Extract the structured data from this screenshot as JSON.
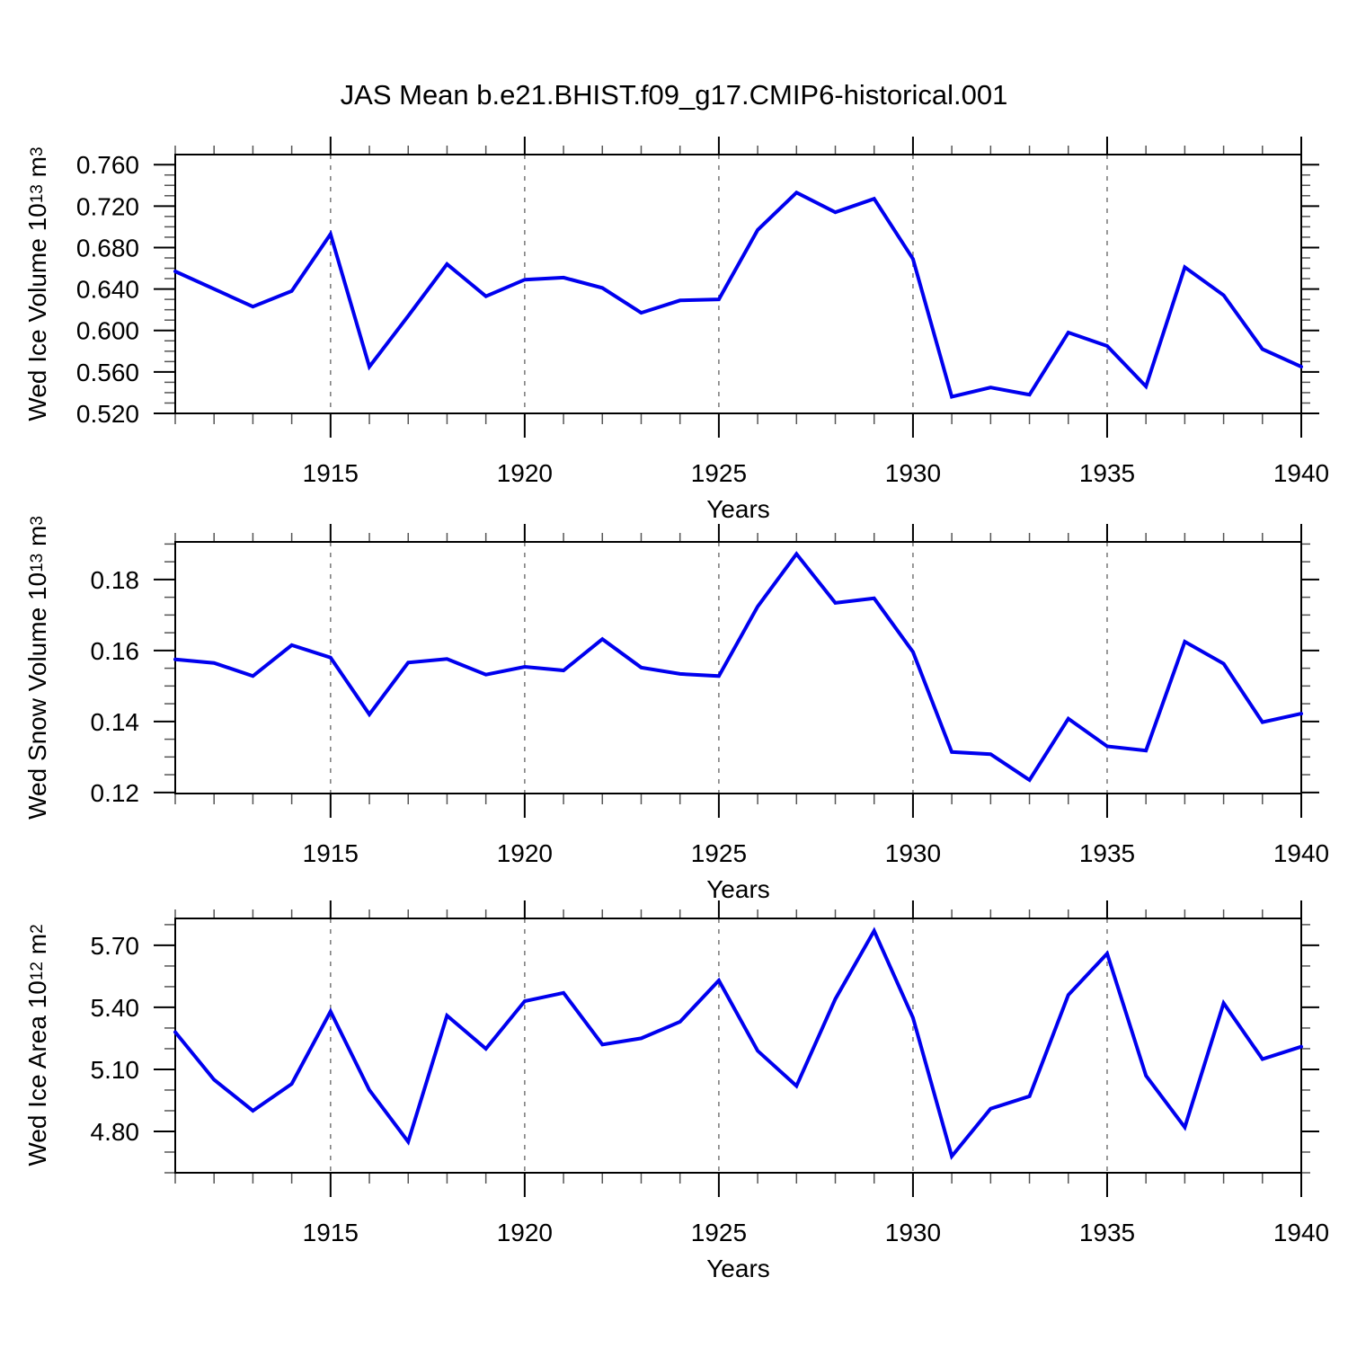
{
  "title": "JAS Mean b.e21.BHIST.f09_g17.CMIP6-historical.001",
  "panels": [
    {
      "ylabel": {
        "base1": "Wed Ice Volume 10",
        "exp1": "13",
        "base2": " m",
        "exp2": "3"
      },
      "xlabel": "Years"
    },
    {
      "ylabel": {
        "base1": "Wed Snow Volume 10",
        "exp1": "13",
        "base2": " m",
        "exp2": "3"
      },
      "xlabel": "Years"
    },
    {
      "ylabel": {
        "base1": "Wed Ice Area 10",
        "exp1": "12",
        "base2": " m",
        "exp2": "2"
      },
      "xlabel": "Years"
    }
  ],
  "colors": {
    "line": "#0000ee",
    "grid": "#777777",
    "frame": "#000000",
    "minor_tick": "#555555"
  },
  "chart_data": [
    {
      "type": "line",
      "id": "ice-volume",
      "title": "JAS Mean b.e21.BHIST.f09_g17.CMIP6-historical.001",
      "ylabel": "Wed Ice Volume 10^13 m^3",
      "xlabel": "Years",
      "legend": "none",
      "grid": "vertical-dashed",
      "xlim": [
        1911,
        1940
      ],
      "ylim": [
        0.52,
        0.7697
      ],
      "x": [
        1911,
        1912,
        1913,
        1914,
        1915,
        1916,
        1917,
        1918,
        1919,
        1920,
        1921,
        1922,
        1923,
        1924,
        1925,
        1926,
        1927,
        1928,
        1929,
        1930,
        1931,
        1932,
        1933,
        1934,
        1935,
        1936,
        1937,
        1938,
        1939,
        1940
      ],
      "values": [
        0.657,
        0.64,
        0.623,
        0.638,
        0.693,
        0.565,
        0.614,
        0.664,
        0.633,
        0.649,
        0.651,
        0.641,
        0.617,
        0.629,
        0.63,
        0.697,
        0.733,
        0.714,
        0.727,
        0.669,
        0.536,
        0.545,
        0.538,
        0.598,
        0.585,
        0.546,
        0.661,
        0.634,
        0.582,
        0.565
      ],
      "yticks": [
        {
          "v": 0.76,
          "label": "0.760"
        },
        {
          "v": 0.72,
          "label": "0.720"
        },
        {
          "v": 0.68,
          "label": "0.680"
        },
        {
          "v": 0.64,
          "label": "0.640"
        },
        {
          "v": 0.6,
          "label": "0.600"
        },
        {
          "v": 0.56,
          "label": "0.560"
        },
        {
          "v": 0.52,
          "label": "0.520"
        }
      ],
      "ytick_minor_step": 0.01,
      "xticks": [
        1915,
        1920,
        1925,
        1930,
        1935,
        1940
      ],
      "x_gridlines": [
        1915,
        1920,
        1925,
        1930,
        1935
      ],
      "color": "#0000ee"
    },
    {
      "type": "line",
      "id": "snow-volume",
      "title": "",
      "ylabel": "Wed Snow Volume 10^13 m^3",
      "xlabel": "Years",
      "legend": "none",
      "grid": "vertical-dashed",
      "xlim": [
        1911,
        1940
      ],
      "ylim": [
        0.1197,
        0.1906
      ],
      "x": [
        1911,
        1912,
        1913,
        1914,
        1915,
        1916,
        1917,
        1918,
        1919,
        1920,
        1921,
        1922,
        1923,
        1924,
        1925,
        1926,
        1927,
        1928,
        1929,
        1930,
        1931,
        1932,
        1933,
        1934,
        1935,
        1936,
        1937,
        1938,
        1939,
        1940
      ],
      "values": [
        0.1575,
        0.1565,
        0.1528,
        0.1615,
        0.158,
        0.142,
        0.1566,
        0.1576,
        0.1532,
        0.1554,
        0.1544,
        0.1632,
        0.1552,
        0.1534,
        0.1528,
        0.1724,
        0.1872,
        0.1734,
        0.1747,
        0.1596,
        0.1314,
        0.1308,
        0.1235,
        0.1408,
        0.133,
        0.1318,
        0.1625,
        0.1563,
        0.1398,
        0.1422
      ],
      "yticks": [
        {
          "v": 0.18,
          "label": "0.18"
        },
        {
          "v": 0.16,
          "label": "0.16"
        },
        {
          "v": 0.14,
          "label": "0.14"
        },
        {
          "v": 0.12,
          "label": "0.12"
        }
      ],
      "ytick_minor_step": 0.005,
      "xticks": [
        1915,
        1920,
        1925,
        1930,
        1935,
        1940
      ],
      "x_gridlines": [
        1915,
        1920,
        1925,
        1930,
        1935
      ],
      "color": "#0000ee"
    },
    {
      "type": "line",
      "id": "ice-area",
      "title": "",
      "ylabel": "Wed Ice Area 10^12 m^2",
      "xlabel": "Years",
      "legend": "none",
      "grid": "vertical-dashed",
      "xlim": [
        1911,
        1940
      ],
      "ylim": [
        4.6,
        5.83
      ],
      "x": [
        1911,
        1912,
        1913,
        1914,
        1915,
        1916,
        1917,
        1918,
        1919,
        1920,
        1921,
        1922,
        1923,
        1924,
        1925,
        1926,
        1927,
        1928,
        1929,
        1930,
        1931,
        1932,
        1933,
        1934,
        1935,
        1936,
        1937,
        1938,
        1939,
        1940
      ],
      "values": [
        5.28,
        5.05,
        4.9,
        5.03,
        5.38,
        5.0,
        4.75,
        5.36,
        5.2,
        5.43,
        5.47,
        5.22,
        5.25,
        5.33,
        5.53,
        5.19,
        5.02,
        5.44,
        5.77,
        5.35,
        4.68,
        4.91,
        4.97,
        5.46,
        5.66,
        5.07,
        4.82,
        5.42,
        5.15,
        5.21
      ],
      "yticks": [
        {
          "v": 5.7,
          "label": "5.70"
        },
        {
          "v": 5.4,
          "label": "5.40"
        },
        {
          "v": 5.1,
          "label": "5.10"
        },
        {
          "v": 4.8,
          "label": "4.80"
        }
      ],
      "ytick_minor_step": 0.1,
      "xticks": [
        1915,
        1920,
        1925,
        1930,
        1935,
        1940
      ],
      "x_gridlines": [
        1915,
        1920,
        1925,
        1930,
        1935
      ],
      "color": "#0000ee"
    }
  ]
}
